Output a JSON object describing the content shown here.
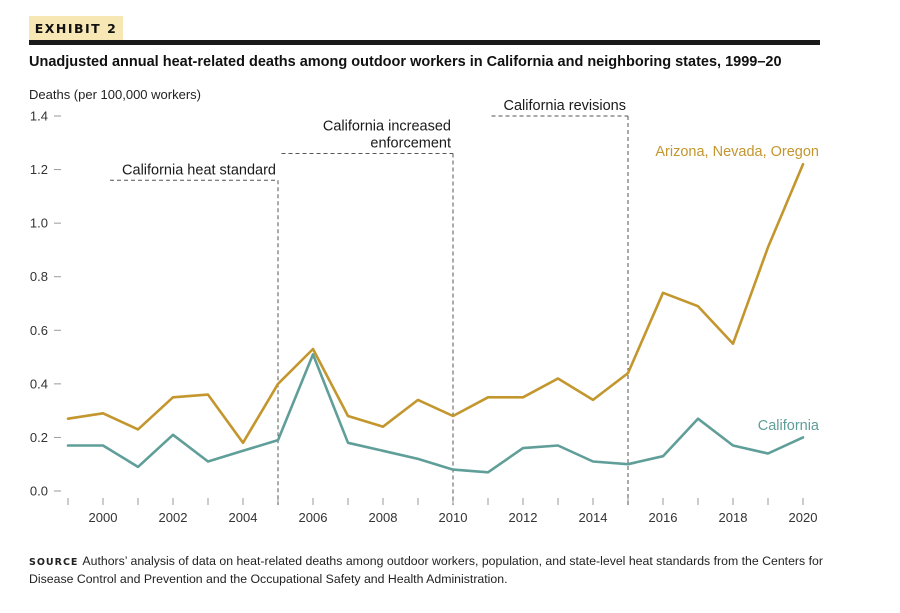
{
  "header": {
    "exhibit_label": "EXHIBIT 2",
    "title": "Unadjusted annual heat-related deaths among outdoor workers in California and neighboring states, 1999–20"
  },
  "footer": {
    "source_label": "SOURCE",
    "source_text": "Authors’ analysis of data on heat-related deaths among outdoor workers, population, and state-level heat standards from the Centers for Disease Control and Prevention and the Occupational Safety and Health Administration."
  },
  "colors": {
    "neighbors": "#c3962e",
    "california": "#5f9e99",
    "axis": "#9a9a9a",
    "annotation": "#555555"
  },
  "chart_data": {
    "type": "line",
    "ylabel": "Deaths (per 100,000 workers)",
    "xlabel": "",
    "xlim": [
      1999,
      2020
    ],
    "ylim": [
      0,
      1.4
    ],
    "y_ticks": [
      0.0,
      0.2,
      0.4,
      0.6,
      0.8,
      1.0,
      1.2,
      1.4
    ],
    "y_tick_labels": [
      "0.0",
      "0.2",
      "0.4",
      "0.6",
      "0.8",
      "1.0",
      "1.2",
      "1.4"
    ],
    "x_labeled_ticks": [
      2000,
      2002,
      2004,
      2006,
      2008,
      2010,
      2012,
      2014,
      2016,
      2018,
      2020
    ],
    "x_tick_labels": [
      "2000",
      "2002",
      "2004",
      "2006",
      "2008",
      "2010",
      "2012",
      "2014",
      "2016",
      "2018",
      "2020"
    ],
    "grid": false,
    "x": [
      1999,
      2000,
      2001,
      2002,
      2003,
      2004,
      2005,
      2006,
      2007,
      2008,
      2009,
      2010,
      2011,
      2012,
      2013,
      2014,
      2015,
      2016,
      2017,
      2018,
      2019,
      2020
    ],
    "series": [
      {
        "name": "Arizona, Nevada, Oregon",
        "color": "#c3962e",
        "values": [
          0.27,
          0.29,
          0.23,
          0.35,
          0.36,
          0.18,
          0.4,
          0.53,
          0.28,
          0.24,
          0.34,
          0.28,
          0.35,
          0.35,
          0.42,
          0.34,
          0.44,
          0.74,
          0.69,
          0.55,
          0.91,
          1.22
        ]
      },
      {
        "name": "California",
        "color": "#5f9e99",
        "values": [
          0.17,
          0.17,
          0.09,
          0.21,
          0.11,
          0.15,
          0.19,
          0.51,
          0.18,
          0.15,
          0.12,
          0.08,
          0.07,
          0.16,
          0.17,
          0.11,
          0.1,
          0.13,
          0.27,
          0.17,
          0.14,
          0.2
        ]
      }
    ],
    "annotations": [
      {
        "lines": [
          "California heat standard"
        ],
        "x": 2005,
        "y_top": 1.16,
        "x_start": 2000.2,
        "align": "right"
      },
      {
        "lines": [
          "California increased",
          "enforcement"
        ],
        "x": 2010,
        "y_top": 1.26,
        "x_start": 2005.1,
        "align": "right"
      },
      {
        "lines": [
          "California revisions"
        ],
        "x": 2015,
        "y_top": 1.4,
        "x_start": 2011.1,
        "align": "right"
      }
    ]
  }
}
